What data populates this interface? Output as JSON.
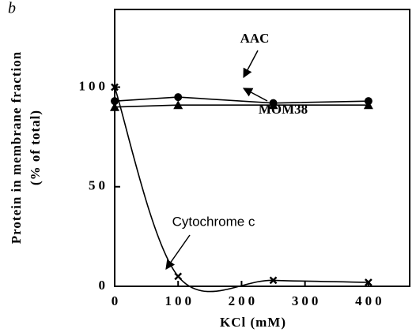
{
  "chart_data": {
    "type": "line",
    "panel_label": "b",
    "ylabel": [
      "Protein in membrane fraction",
      "(% of total)"
    ],
    "xlabel": "KCl (mM)",
    "xlim": [
      0,
      465
    ],
    "ylim": [
      0,
      139
    ],
    "xticks": [
      0,
      100,
      200,
      300,
      400
    ],
    "yticks": [
      0,
      50,
      100
    ],
    "series": [
      {
        "name": "AAC",
        "color": "#000",
        "marker": "circle",
        "smooth": false,
        "x": [
          0,
          100,
          250,
          400
        ],
        "values": [
          93,
          95,
          92,
          93
        ]
      },
      {
        "name": "MOM38",
        "color": "#000",
        "marker": "triangle",
        "smooth": false,
        "x": [
          0,
          100,
          250,
          400
        ],
        "values": [
          90,
          91,
          91,
          91
        ]
      },
      {
        "name": "Cytochrome c",
        "color": "#000",
        "marker": "cross",
        "smooth": true,
        "x": [
          0,
          100,
          250,
          400
        ],
        "values": [
          100,
          5,
          3,
          2
        ]
      }
    ]
  }
}
